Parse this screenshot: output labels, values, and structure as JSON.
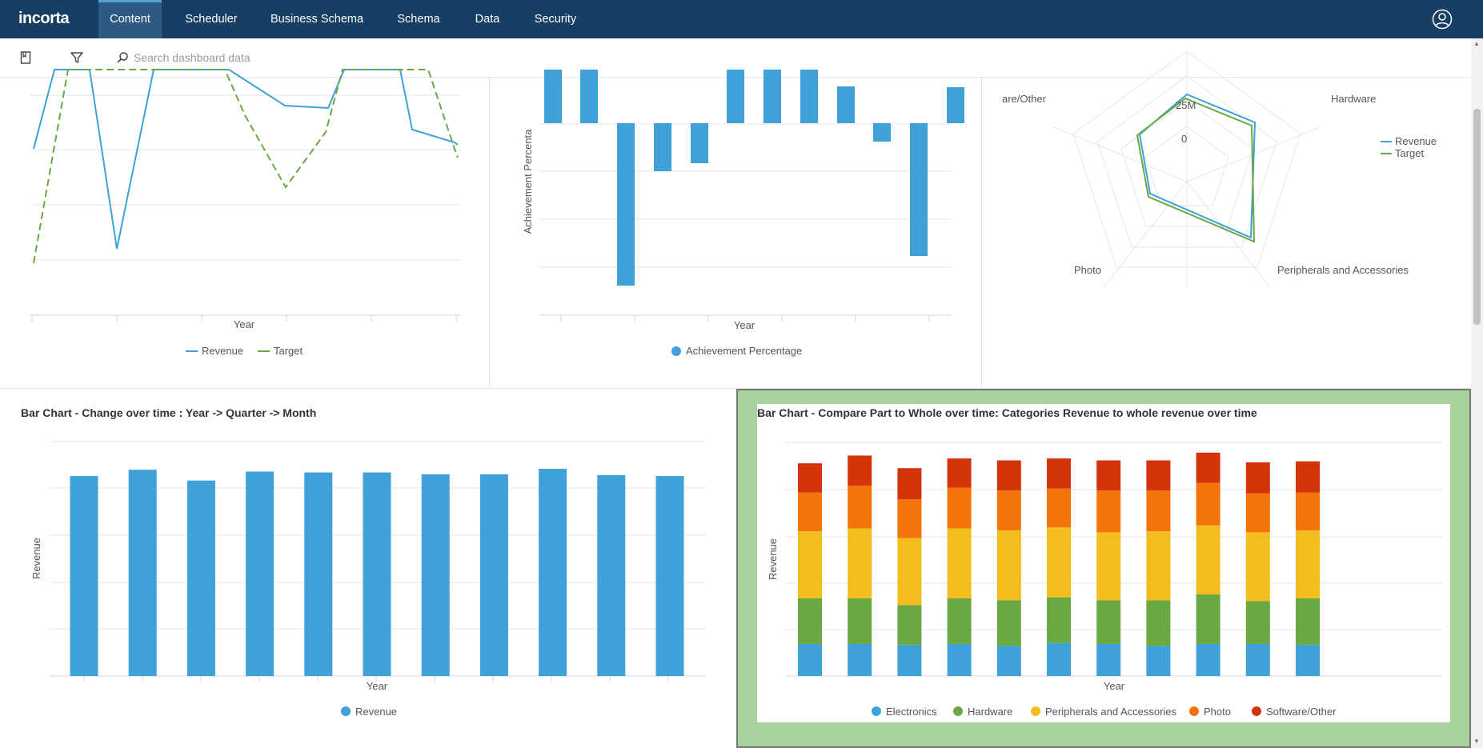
{
  "app": {
    "logo": "incorta"
  },
  "nav": {
    "tabs": [
      "Content",
      "Scheduler",
      "Business Schema",
      "Schema",
      "Data",
      "Security"
    ],
    "active": "Content"
  },
  "toolbar": {
    "search_placeholder": "Search dashboard data"
  },
  "colors": {
    "nav_bg": "#173f63",
    "blue": "#3ea2d8",
    "green": "#6aa842",
    "yellow": "#f2bd1d",
    "orange": "#f5730b",
    "red": "#d4340a",
    "highlight_bg": "#a8d19c"
  },
  "line_panel": {
    "chart_data": {
      "type": "line",
      "xlabel": "Year",
      "series": [
        {
          "name": "Revenue"
        },
        {
          "name": "Target"
        }
      ],
      "legend": [
        "Revenue",
        "Target"
      ]
    }
  },
  "achievement_panel": {
    "chart_data": {
      "type": "bar",
      "xlabel": "Year",
      "ylabel": "Achievement Percenta",
      "legend": [
        "Achievement Percentage"
      ]
    }
  },
  "radar_panel": {
    "chart_data": {
      "type": "radar",
      "axes": [
        "Hardware",
        "Peripherals and Accessories",
        "Photo",
        "are/Other"
      ],
      "tick_labels": [
        "25M",
        "0"
      ],
      "legend": [
        "Revenue",
        "Target"
      ]
    }
  },
  "bar_panel": {
    "title": "Bar Chart - Change over time : Year -> Quarter -> Month",
    "chart_data": {
      "type": "bar",
      "xlabel": "Year",
      "ylabel": "Revenue",
      "legend": [
        "Revenue"
      ],
      "values": [
        220,
        227,
        215,
        225,
        224,
        224,
        222,
        222,
        228,
        221,
        220
      ]
    }
  },
  "stacked_panel": {
    "title": "Bar Chart - Compare Part to Whole over time: Categories Revenue to whole revenue over time",
    "chart_data": {
      "type": "bar",
      "stacked": true,
      "xlabel": "Year",
      "ylabel": "Revenue",
      "legend": [
        "Electronics",
        "Hardware",
        "Peripherals and Accessories",
        "Photo",
        "Software/Other"
      ],
      "series": [
        {
          "name": "Electronics",
          "values": [
            33,
            33,
            32,
            33,
            31,
            34,
            33,
            31,
            33,
            33,
            32
          ]
        },
        {
          "name": "Hardware",
          "values": [
            47,
            47,
            41,
            47,
            47,
            47,
            45,
            47,
            51,
            44,
            48
          ]
        },
        {
          "name": "Peripherals and Accessories",
          "values": [
            69,
            72,
            69,
            72,
            72,
            72,
            70,
            71,
            71,
            71,
            70
          ]
        },
        {
          "name": "Photo",
          "values": [
            40,
            44,
            40,
            42,
            41,
            40,
            43,
            42,
            44,
            40,
            39
          ]
        },
        {
          "name": "Software/Other",
          "values": [
            30,
            31,
            32,
            30,
            31,
            31,
            31,
            31,
            31,
            32,
            32
          ]
        }
      ]
    }
  }
}
